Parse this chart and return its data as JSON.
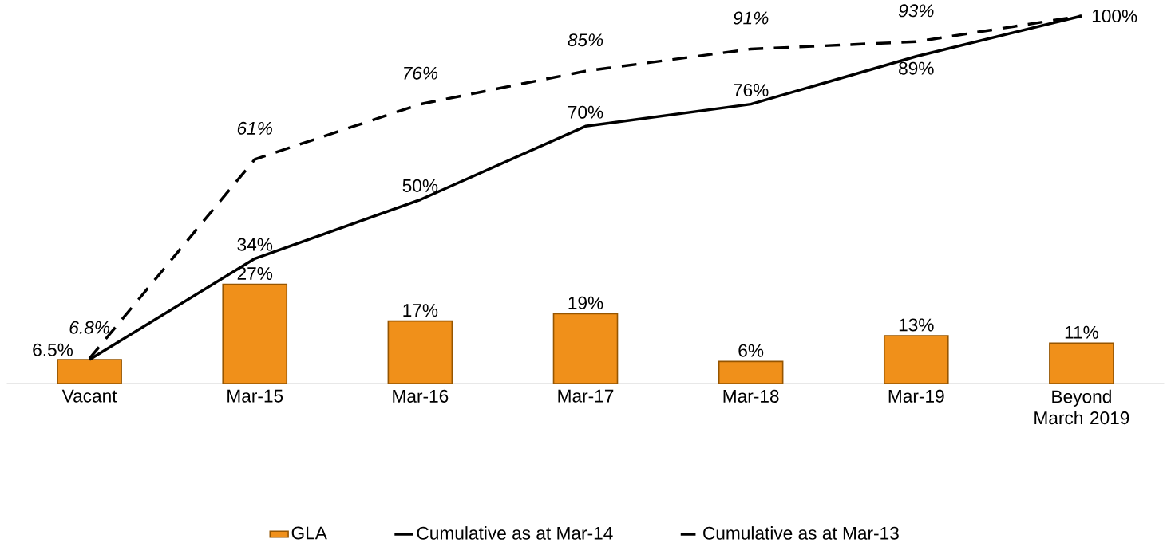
{
  "chart_data": {
    "type": "bar",
    "categories": [
      "Vacant",
      "Mar-15",
      "Mar-16",
      "Mar-17",
      "Mar-18",
      "Mar-19",
      "Beyond March 2019"
    ],
    "series": [
      {
        "name": "GLA",
        "color": "#f0901a",
        "values": [
          6.5,
          27,
          17,
          19,
          6,
          13,
          11
        ],
        "value_labels": [
          "6.5%",
          "27%",
          "17%",
          "19%",
          "6%",
          "13%",
          "11%"
        ]
      },
      {
        "name": "Cumulative as at Mar-14",
        "type": "line",
        "color": "#000000",
        "line_style": "solid",
        "values": [
          6.5,
          34,
          50,
          70,
          76,
          89,
          100
        ],
        "value_labels": [
          null,
          "34%",
          "50%",
          "70%",
          "76%",
          "89%",
          "100%"
        ]
      },
      {
        "name": "Cumulative as at Mar-13",
        "type": "line",
        "color": "#000000",
        "line_style": "dashed",
        "values": [
          6.8,
          61,
          76,
          85,
          91,
          93,
          100
        ],
        "value_labels": [
          "6.8%",
          "61%",
          "76%",
          "85%",
          "91%",
          "93%",
          null
        ]
      }
    ],
    "tick_labels": "x",
    "legend": "bottom"
  }
}
